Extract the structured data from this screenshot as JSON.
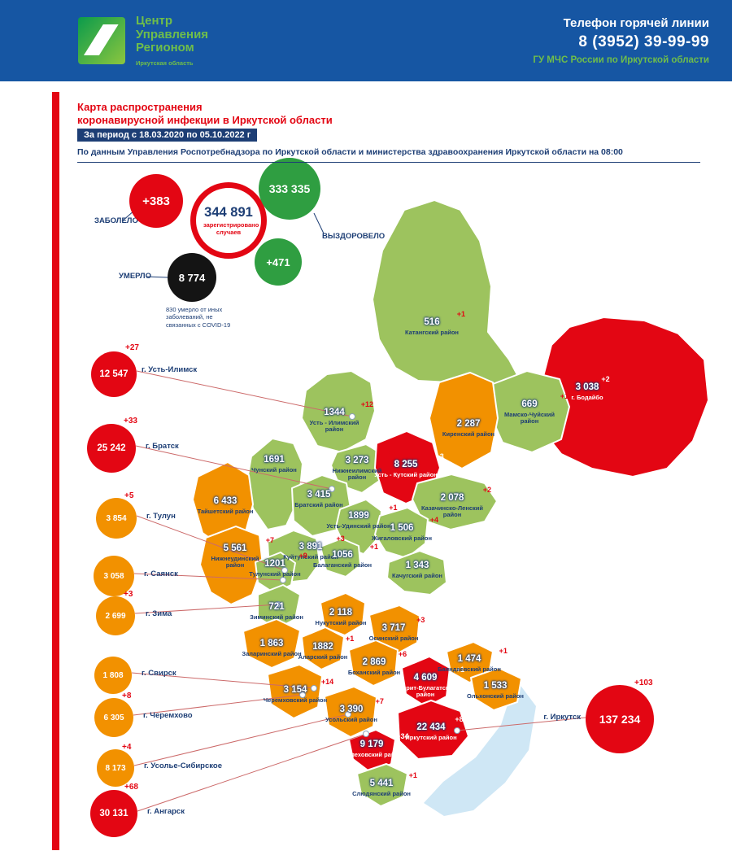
{
  "palette": {
    "header_blue": "#1656a3",
    "brand_green": "#6fbe4a",
    "navy": "#1d3e75",
    "red": "#e30613",
    "orange": "#f29100",
    "region_green": "#9dc35e",
    "recovered_green": "#2f9e41",
    "died_black": "#141414",
    "lake_blue": "#cfe7f5",
    "leader_line": "#cc6a6a"
  },
  "header": {
    "logo_lines": [
      "Центр",
      "Управления",
      "Регионом"
    ],
    "logo_subtitle": "Иркутская область",
    "hotline_title": "Телефон горячей линии",
    "hotline_phone": "8 (3952) 39-99-99",
    "hotline_org": "ГУ МЧС России по Иркутской области"
  },
  "title": {
    "line1": "Карта распространения",
    "line2": "коронавирусной инфекции в Иркутской области",
    "period": "За период с 18.03.2020 по 05.10.2022 г",
    "source": "По данным Управления Роспотребнадзора по Иркутской области и министерства здравоохранения Иркутской области на 08:00"
  },
  "stats": {
    "sick_label": "ЗАБОЛЕЛО",
    "sick_delta": "+383",
    "registered_value": "344 891",
    "registered_caption": "зарегистрировано случаев",
    "recovered_value": "333 335",
    "recovered_label": "ВЫЗДОРОВЕЛО",
    "recovered_delta": "+471",
    "died_value": "8 774",
    "died_label": "УМЕРЛО",
    "died_note": "830 умерло от иных заболеваний, не связанных с COVID-19"
  },
  "map": {
    "regions": [
      {
        "key": "katangsky",
        "name": "Катангский район",
        "value": "516",
        "delta": "+1",
        "level": "green"
      },
      {
        "key": "bodaybo",
        "name": "г. Бодайбо",
        "value": "3 038",
        "delta": "+2",
        "level": "red"
      },
      {
        "key": "mamsko",
        "name": "Мамско-Чуйский район",
        "value": "669",
        "delta": "+1",
        "level": "green"
      },
      {
        "key": "kirensky",
        "name": "Киренский район",
        "value": "2 287",
        "delta": null,
        "level": "orange"
      },
      {
        "key": "ust_ilimsky",
        "name": "Усть - Илимский район",
        "value": "1344",
        "delta": "+12",
        "level": "green"
      },
      {
        "key": "nizhneilimsky",
        "name": "Нижнеилимский район",
        "value": "3 273",
        "delta": "+1",
        "level": "green"
      },
      {
        "key": "ust_kutsky",
        "name": "Усть - Кутский район",
        "value": "8 255",
        "delta": "+3",
        "level": "red"
      },
      {
        "key": "chunsky",
        "name": "Чунский район",
        "value": "1691",
        "delta": null,
        "level": "green"
      },
      {
        "key": "bratsky",
        "name": "Братский район",
        "value": "3 415",
        "delta": null,
        "level": "green"
      },
      {
        "key": "kazachinsky",
        "name": "Казачинско-Ленский район",
        "value": "2 078",
        "delta": "+2",
        "level": "green"
      },
      {
        "key": "tayshetsky",
        "name": "Тайшетский район",
        "value": "6 433",
        "delta": null,
        "level": "orange"
      },
      {
        "key": "ust_udinsky",
        "name": "Усть-Удинский район",
        "value": "1899",
        "delta": "+1",
        "level": "green"
      },
      {
        "key": "zhigalovsky",
        "name": "Жигаловский район",
        "value": "1 506",
        "delta": "+4",
        "level": "green"
      },
      {
        "key": "nizhneudinsky",
        "name": "Нижнеудинский район",
        "value": "5 561",
        "delta": "+7",
        "level": "orange"
      },
      {
        "key": "kuytunsky",
        "name": "Куйтунский район",
        "value": "3 891",
        "delta": "+3",
        "level": "green"
      },
      {
        "key": "tulunsky",
        "name": "Тулунский район",
        "value": "1201",
        "delta": "+9",
        "level": "green"
      },
      {
        "key": "balagansky",
        "name": "Балаганский район",
        "value": "1056",
        "delta": "+1",
        "level": "green"
      },
      {
        "key": "kachugsky",
        "name": "Качугский район",
        "value": "1 343",
        "delta": null,
        "level": "green"
      },
      {
        "key": "ziminsky",
        "name": "Зиминский район",
        "value": "721",
        "delta": null,
        "level": "green"
      },
      {
        "key": "nukutsky",
        "name": "Нукутский район",
        "value": "2 118",
        "delta": null,
        "level": "orange"
      },
      {
        "key": "osinsky",
        "name": "Осинский район",
        "value": "3 717",
        "delta": "+3",
        "level": "orange"
      },
      {
        "key": "zalarinsky",
        "name": "Заларинский район",
        "value": "1 863",
        "delta": null,
        "level": "orange"
      },
      {
        "key": "alarsky",
        "name": "Аларский район",
        "value": "1882",
        "delta": "+1",
        "level": "orange"
      },
      {
        "key": "bokhansky",
        "name": "Боханский район",
        "value": "2 869",
        "delta": "+6",
        "level": "orange"
      },
      {
        "key": "ekhirit",
        "name": "Эхирит-Булагатский район",
        "value": "4 609",
        "delta": "+1",
        "level": "red"
      },
      {
        "key": "bayandaevsky",
        "name": "Баяндаевский район",
        "value": "1 474",
        "delta": "+1",
        "level": "orange"
      },
      {
        "key": "olkhonsky",
        "name": "Ольхонский район",
        "value": "1 533",
        "delta": null,
        "level": "orange"
      },
      {
        "key": "cheremkhovsky",
        "name": "Черемховский район",
        "value": "3 154",
        "delta": "+14",
        "level": "orange"
      },
      {
        "key": "usolsky",
        "name": "Усольский район",
        "value": "3 390",
        "delta": "+7",
        "level": "orange"
      },
      {
        "key": "shelekhovsky",
        "name": "Шелеховский район",
        "value": "9 179",
        "delta": "+34",
        "level": "red"
      },
      {
        "key": "irkutsky",
        "name": "Иркутский район",
        "value": "22 434",
        "delta": "+8",
        "level": "red"
      },
      {
        "key": "slyudyansky",
        "name": "Слюдянский район",
        "value": "5 441",
        "delta": "+1",
        "level": "green"
      }
    ],
    "cities": [
      {
        "key": "ust_ilimsk",
        "name": "г. Усть-Илимск",
        "value": "12 547",
        "delta": "+27",
        "level": "red"
      },
      {
        "key": "bratsk",
        "name": "г. Братск",
        "value": "25 242",
        "delta": "+33",
        "level": "red"
      },
      {
        "key": "tulun",
        "name": "г. Тулун",
        "value": "3 854",
        "delta": "+5",
        "level": "orange"
      },
      {
        "key": "sayansk",
        "name": "г. Саянск",
        "value": "3 058",
        "delta": null,
        "level": "orange"
      },
      {
        "key": "zima",
        "name": "г. Зима",
        "value": "2 699",
        "delta": "+3",
        "level": "orange"
      },
      {
        "key": "svirsk",
        "name": "г. Свирск",
        "value": "1 808",
        "delta": null,
        "level": "orange"
      },
      {
        "key": "cheremkhovo",
        "name": "г. Черемхово",
        "value": "6 305",
        "delta": "+8",
        "level": "orange"
      },
      {
        "key": "usolye",
        "name": "г. Усолье-Сибирское",
        "value": "8 173",
        "delta": "+4",
        "level": "orange"
      },
      {
        "key": "angarsk",
        "name": "г. Ангарск",
        "value": "30 131",
        "delta": "+68",
        "level": "red"
      },
      {
        "key": "irkutsk",
        "name": "г. Иркутск",
        "value": "137 234",
        "delta": "+103",
        "level": "red"
      }
    ]
  }
}
